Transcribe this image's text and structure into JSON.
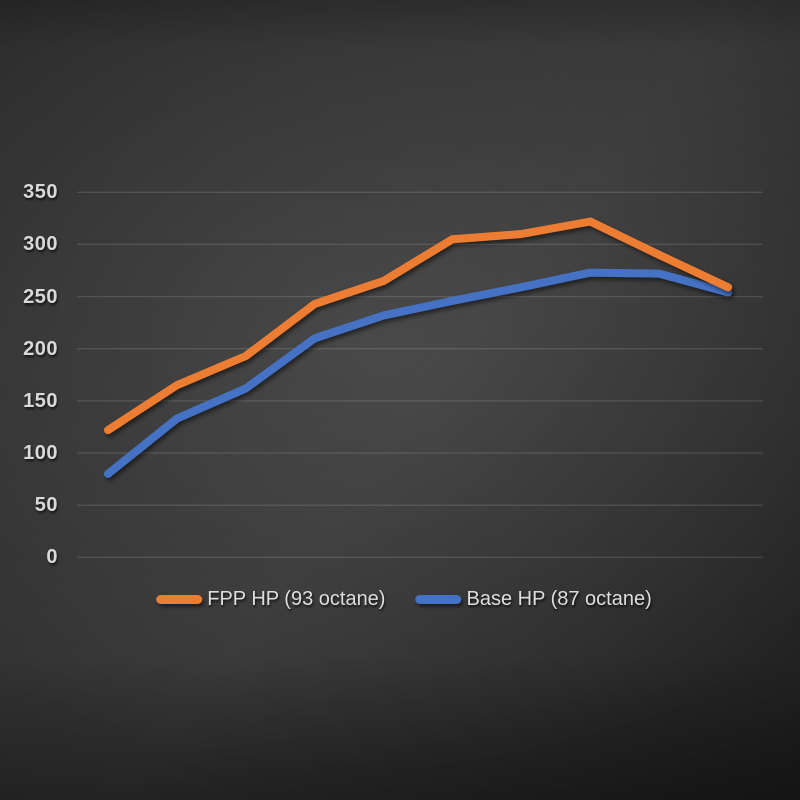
{
  "chart_data": {
    "type": "line",
    "title": "",
    "x_axis": {
      "labels_visible": false,
      "num_points": 10
    },
    "y_axis": {
      "min": 0,
      "max": 350,
      "tick_step": 50,
      "tick_labels_display": [
        "350",
        "300",
        "250",
        "200",
        "150",
        "100",
        "50",
        "0"
      ]
    },
    "grid": {
      "horizontal": true,
      "vertical": false
    },
    "legend_position": "bottom",
    "series": [
      {
        "name": "FPP HP (93 octane)",
        "color": "#ED7D31",
        "values": [
          122,
          165,
          193,
          243,
          265,
          305,
          310,
          322,
          290,
          259
        ]
      },
      {
        "name": "Base HP (87 octane)",
        "color": "#4472C4",
        "values": [
          80,
          133,
          162,
          210,
          232,
          246,
          259,
          273,
          272,
          254
        ]
      }
    ]
  },
  "style": {
    "tick_label_color": "#D9D9D9",
    "legend_label_color": "#DEDEDE",
    "gridline_color": "rgba(255,255,255,0.13)",
    "background_base": "#303030"
  }
}
